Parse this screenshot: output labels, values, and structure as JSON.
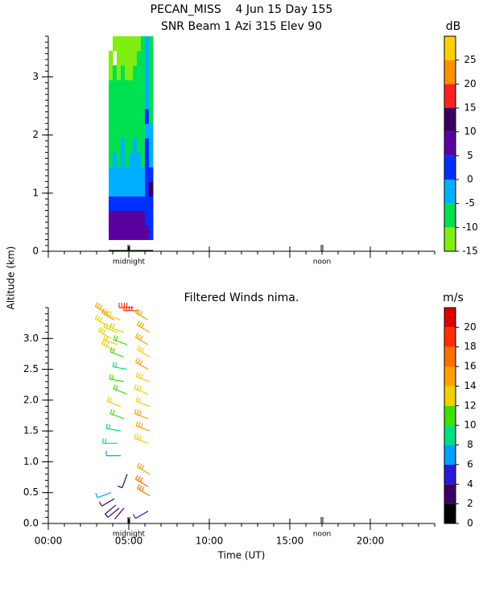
{
  "chart_data": [
    {
      "type": "heatmap",
      "title": "PECAN_MISS    4 Jun 15 Day 155",
      "subtitle": "SNR Beam 1 Azi 315 Elev 90",
      "y_label": "Altitude (km)",
      "xlim": [
        0,
        24
      ],
      "ylim": [
        0,
        3.7
      ],
      "xticks": [
        0,
        5,
        10,
        15,
        20
      ],
      "yticks": [
        0,
        1,
        2,
        3
      ],
      "markers": [
        {
          "x": 5,
          "label": "midnight"
        },
        {
          "x": 17,
          "label": "noon"
        }
      ],
      "x_edges": [
        3.75,
        4.0,
        4.25,
        4.5,
        4.75,
        5.0,
        5.25,
        5.5,
        5.75,
        6.0,
        6.25,
        6.5
      ],
      "y_edges": [
        0.2,
        0.45,
        0.7,
        0.95,
        1.2,
        1.45,
        1.7,
        1.95,
        2.2,
        2.45,
        2.7,
        2.95,
        3.2,
        3.45,
        3.7
      ],
      "z": [
        [
          8,
          8,
          7,
          8,
          9,
          8,
          7,
          8,
          7,
          6,
          3
        ],
        [
          6,
          7,
          6,
          7,
          6,
          7,
          6,
          6,
          5,
          4,
          2
        ],
        [
          2,
          2,
          3,
          2,
          3,
          2,
          2,
          1,
          2,
          2,
          0
        ],
        [
          -3,
          -2,
          -3,
          -3,
          -2,
          -3,
          -2,
          -3,
          -2,
          1,
          12
        ],
        [
          -4,
          -3,
          -4,
          -3,
          -4,
          -3,
          -4,
          -3,
          -4,
          0,
          3
        ],
        [
          -7,
          -4,
          -6,
          -3,
          -6,
          -4,
          -3,
          -4,
          -6,
          1,
          -2
        ],
        [
          -7,
          -6,
          -7,
          -4,
          -7,
          -6,
          -4,
          -6,
          -7,
          2,
          -3
        ],
        [
          -8,
          -7,
          -7,
          -6,
          -8,
          -7,
          -6,
          -7,
          -7,
          -1,
          -4
        ],
        [
          -8,
          -8,
          -7,
          -7,
          -8,
          -8,
          -7,
          -7,
          -8,
          2,
          -6
        ],
        [
          -8,
          -9,
          -8,
          -8,
          -9,
          -8,
          -8,
          -7,
          -8,
          -3,
          -7
        ],
        [
          -9,
          -9,
          -8,
          -9,
          -9,
          -9,
          -8,
          -9,
          -8,
          -3,
          -7
        ],
        [
          -11,
          -9,
          -11,
          -9,
          -11,
          -11,
          -9,
          -9,
          -9,
          -4,
          -8
        ],
        [
          -12,
          null,
          -12,
          -11,
          -12,
          -11,
          -11,
          -9,
          -8,
          -3,
          -8
        ],
        [
          null,
          -13,
          -12,
          -12,
          -13,
          -12,
          -12,
          -11,
          -9,
          -4,
          -9
        ]
      ],
      "colorbar": {
        "label": "dB",
        "edges": [
          -15,
          -10,
          -5,
          0,
          5,
          10,
          15,
          20,
          25,
          30
        ],
        "colors": [
          "#80ee10",
          "#00e050",
          "#00b0ff",
          "#0030ff",
          "#5a00a0",
          "#3a0060",
          "#ff2020",
          "#ff9000",
          "#ffd000"
        ],
        "ticks": [
          -15,
          -10,
          -5,
          0,
          5,
          10,
          15,
          20,
          25
        ]
      }
    },
    {
      "type": "barbs",
      "title": "Filtered Winds nima.",
      "x_label": "Time (UT)",
      "xlim": [
        0,
        24
      ],
      "ylim": [
        0,
        3.5
      ],
      "xticks": [
        {
          "value": 0,
          "label": "00:00"
        },
        {
          "value": 5,
          "label": "05:00"
        },
        {
          "value": 10,
          "label": "10:00"
        },
        {
          "value": 15,
          "label": "15:00"
        },
        {
          "value": 20,
          "label": "20:00"
        }
      ],
      "yticks": [
        {
          "value": 0,
          "label": "0.0"
        },
        {
          "value": 0.5,
          "label": "0.5"
        },
        {
          "value": 1,
          "label": "1.0"
        },
        {
          "value": 1.5,
          "label": "1.5"
        },
        {
          "value": 2,
          "label": "2.0"
        },
        {
          "value": 2.5,
          "label": "2.5"
        },
        {
          "value": 3,
          "label": "3.0"
        }
      ],
      "markers": [
        {
          "x": 5,
          "label": "midnight"
        },
        {
          "x": 17,
          "label": "noon"
        }
      ],
      "barbs": {
        "x": [
          3.7,
          3.7,
          3.9,
          4.1,
          4.3,
          4.3,
          4.1,
          4.5,
          4.7,
          4.9,
          4.7,
          4.9,
          4.7,
          4.9,
          4.5,
          4.7,
          4.5,
          4.3,
          4.5,
          5.3,
          5.6,
          6.2,
          6.3,
          6.2,
          6.3,
          6.2,
          6.3,
          6.2,
          6.3,
          6.2,
          6.3,
          6.2,
          6.3,
          6.2,
          6.3,
          3.9,
          4.1,
          4.2,
          4.4,
          4.7,
          6.2,
          4.9
        ],
        "y": [
          3.4,
          3.2,
          3.0,
          3.3,
          3.1,
          2.9,
          2.8,
          3.3,
          3.1,
          2.9,
          2.7,
          2.5,
          2.3,
          2.1,
          1.9,
          1.7,
          1.5,
          1.3,
          1.1,
          3.5,
          3.45,
          3.3,
          3.1,
          2.9,
          2.7,
          2.5,
          2.3,
          2.1,
          1.9,
          1.7,
          1.5,
          1.3,
          0.8,
          0.6,
          0.45,
          0.5,
          0.4,
          0.3,
          0.25,
          0.25,
          0.2,
          0.8
        ],
        "speed": [
          14,
          13,
          13,
          14,
          13,
          12,
          13,
          12,
          12,
          11,
          10,
          9,
          10,
          11,
          12,
          10,
          9,
          8,
          7,
          19,
          18,
          14,
          15,
          14,
          13,
          14,
          13,
          13,
          12,
          14,
          15,
          13,
          15,
          16,
          17,
          6,
          3,
          2,
          3,
          2,
          5,
          3
        ],
        "direction": [
          300,
          300,
          300,
          300,
          290,
          290,
          300,
          290,
          290,
          290,
          290,
          280,
          280,
          290,
          290,
          290,
          280,
          270,
          270,
          270,
          270,
          300,
          300,
          300,
          300,
          300,
          290,
          290,
          290,
          290,
          290,
          290,
          300,
          300,
          300,
          250,
          240,
          230,
          230,
          220,
          240,
          200
        ]
      },
      "colorbar": {
        "label": "m/s",
        "edges": [
          0,
          2,
          4,
          6,
          8,
          10,
          12,
          14,
          16,
          18,
          20,
          22
        ],
        "colors": [
          "#000000",
          "#3c0064",
          "#2a1adc",
          "#00a0ff",
          "#00e080",
          "#40e000",
          "#f0d000",
          "#ffa000",
          "#ff7000",
          "#ff3000",
          "#e00000"
        ],
        "ticks": [
          0,
          2,
          4,
          6,
          8,
          10,
          12,
          14,
          16,
          18,
          20
        ]
      }
    }
  ]
}
